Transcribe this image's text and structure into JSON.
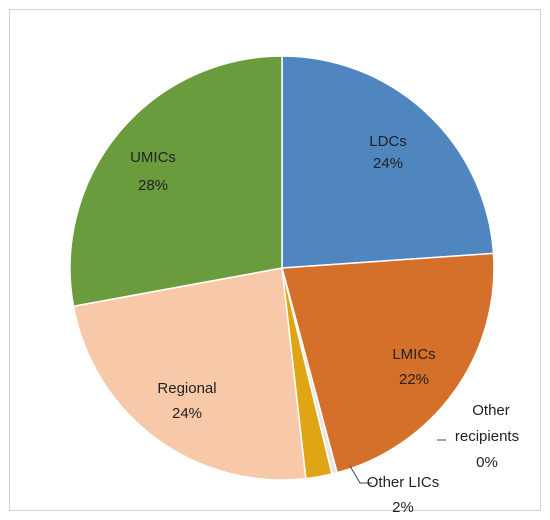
{
  "chart_data": {
    "type": "pie",
    "categories": [
      "LDCs",
      "LMICs",
      "Other recipients",
      "Other LICs",
      "Regional",
      "UMICs"
    ],
    "values": [
      24,
      22,
      0.4,
      2,
      24,
      28
    ],
    "value_labels": [
      "24%",
      "22%",
      "0%",
      "2%",
      "24%",
      "28%"
    ],
    "colors": [
      "#4f86c0",
      "#d4702a",
      "#e6e6e6",
      "#e0a514",
      "#f7c9a9",
      "#6a9c3e"
    ]
  }
}
